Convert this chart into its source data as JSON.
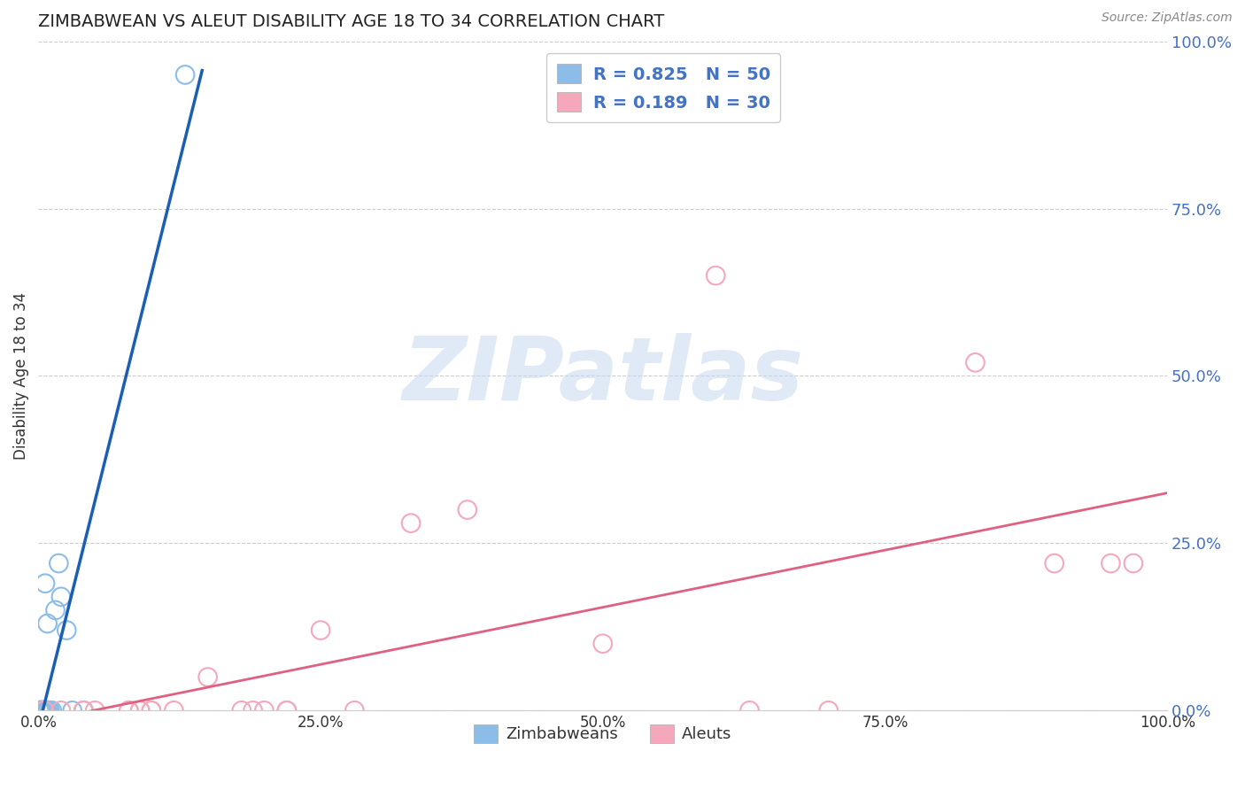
{
  "title": "ZIMBABWEAN VS ALEUT DISABILITY AGE 18 TO 34 CORRELATION CHART",
  "source": "Source: ZipAtlas.com",
  "ylabel": "Disability Age 18 to 34",
  "xlim": [
    0,
    1
  ],
  "ylim": [
    0,
    1
  ],
  "xticks": [
    0.0,
    0.25,
    0.5,
    0.75,
    1.0
  ],
  "yticks": [
    0.0,
    0.25,
    0.5,
    0.75,
    1.0
  ],
  "xticklabels": [
    "0.0%",
    "25.0%",
    "50.0%",
    "75.0%",
    "100.0%"
  ],
  "right_yticklabels": [
    "0.0%",
    "25.0%",
    "50.0%",
    "75.0%",
    "100.0%"
  ],
  "legend_labels": [
    "Zimbabweans",
    "Aleuts"
  ],
  "legend_r": [
    "R = 0.825",
    "N = 50"
  ],
  "legend_n": [
    "R = 0.189",
    "N = 30"
  ],
  "dot_color_blue": "#8bbde8",
  "dot_color_pink": "#f5a8bc",
  "line_color_blue": "#1a5fb4",
  "line_color_pink": "#e06080",
  "watermark": "ZIPatlas",
  "watermark_color": "#c8d8f0",
  "background_color": "#ffffff",
  "grid_color": "#cccccc",
  "right_tick_color": "#4472c4",
  "zimbabwean_x": [
    0.001,
    0.001,
    0.001,
    0.001,
    0.001,
    0.001,
    0.002,
    0.002,
    0.002,
    0.002,
    0.002,
    0.002,
    0.003,
    0.003,
    0.003,
    0.003,
    0.003,
    0.003,
    0.004,
    0.004,
    0.004,
    0.004,
    0.004,
    0.004,
    0.005,
    0.005,
    0.005,
    0.005,
    0.006,
    0.006,
    0.006,
    0.007,
    0.007,
    0.007,
    0.008,
    0.008,
    0.009,
    0.009,
    0.01,
    0.01,
    0.012,
    0.015,
    0.018,
    0.02,
    0.025,
    0.03,
    0.04,
    0.008,
    0.006,
    0.13
  ],
  "zimbabwean_y": [
    0.0,
    0.0,
    0.0,
    0.0,
    0.0,
    0.0,
    0.0,
    0.0,
    0.0,
    0.0,
    0.0,
    0.0,
    0.0,
    0.0,
    0.0,
    0.0,
    0.0,
    0.0,
    0.0,
    0.0,
    0.0,
    0.0,
    0.0,
    0.0,
    0.0,
    0.0,
    0.0,
    0.0,
    0.0,
    0.0,
    0.0,
    0.0,
    0.0,
    0.0,
    0.0,
    0.0,
    0.0,
    0.0,
    0.0,
    0.0,
    0.0,
    0.15,
    0.22,
    0.17,
    0.12,
    0.0,
    0.0,
    0.13,
    0.19,
    0.95
  ],
  "aleut_x": [
    0.005,
    0.18,
    0.22,
    0.28,
    0.05,
    0.38,
    0.1,
    0.09,
    0.19,
    0.22,
    0.25,
    0.6,
    0.02,
    0.5,
    0.08,
    0.15,
    0.08,
    0.33,
    0.2,
    0.83,
    0.63,
    0.09,
    0.12,
    0.04,
    0.95,
    0.97,
    0.7,
    0.04,
    0.9,
    0.1
  ],
  "aleut_y": [
    0.0,
    0.0,
    0.0,
    0.0,
    0.0,
    0.3,
    0.0,
    0.0,
    0.0,
    0.0,
    0.12,
    0.65,
    0.0,
    0.1,
    0.0,
    0.05,
    0.0,
    0.28,
    0.0,
    0.52,
    0.0,
    0.0,
    0.0,
    0.0,
    0.22,
    0.22,
    0.0,
    0.0,
    0.22,
    0.0
  ]
}
